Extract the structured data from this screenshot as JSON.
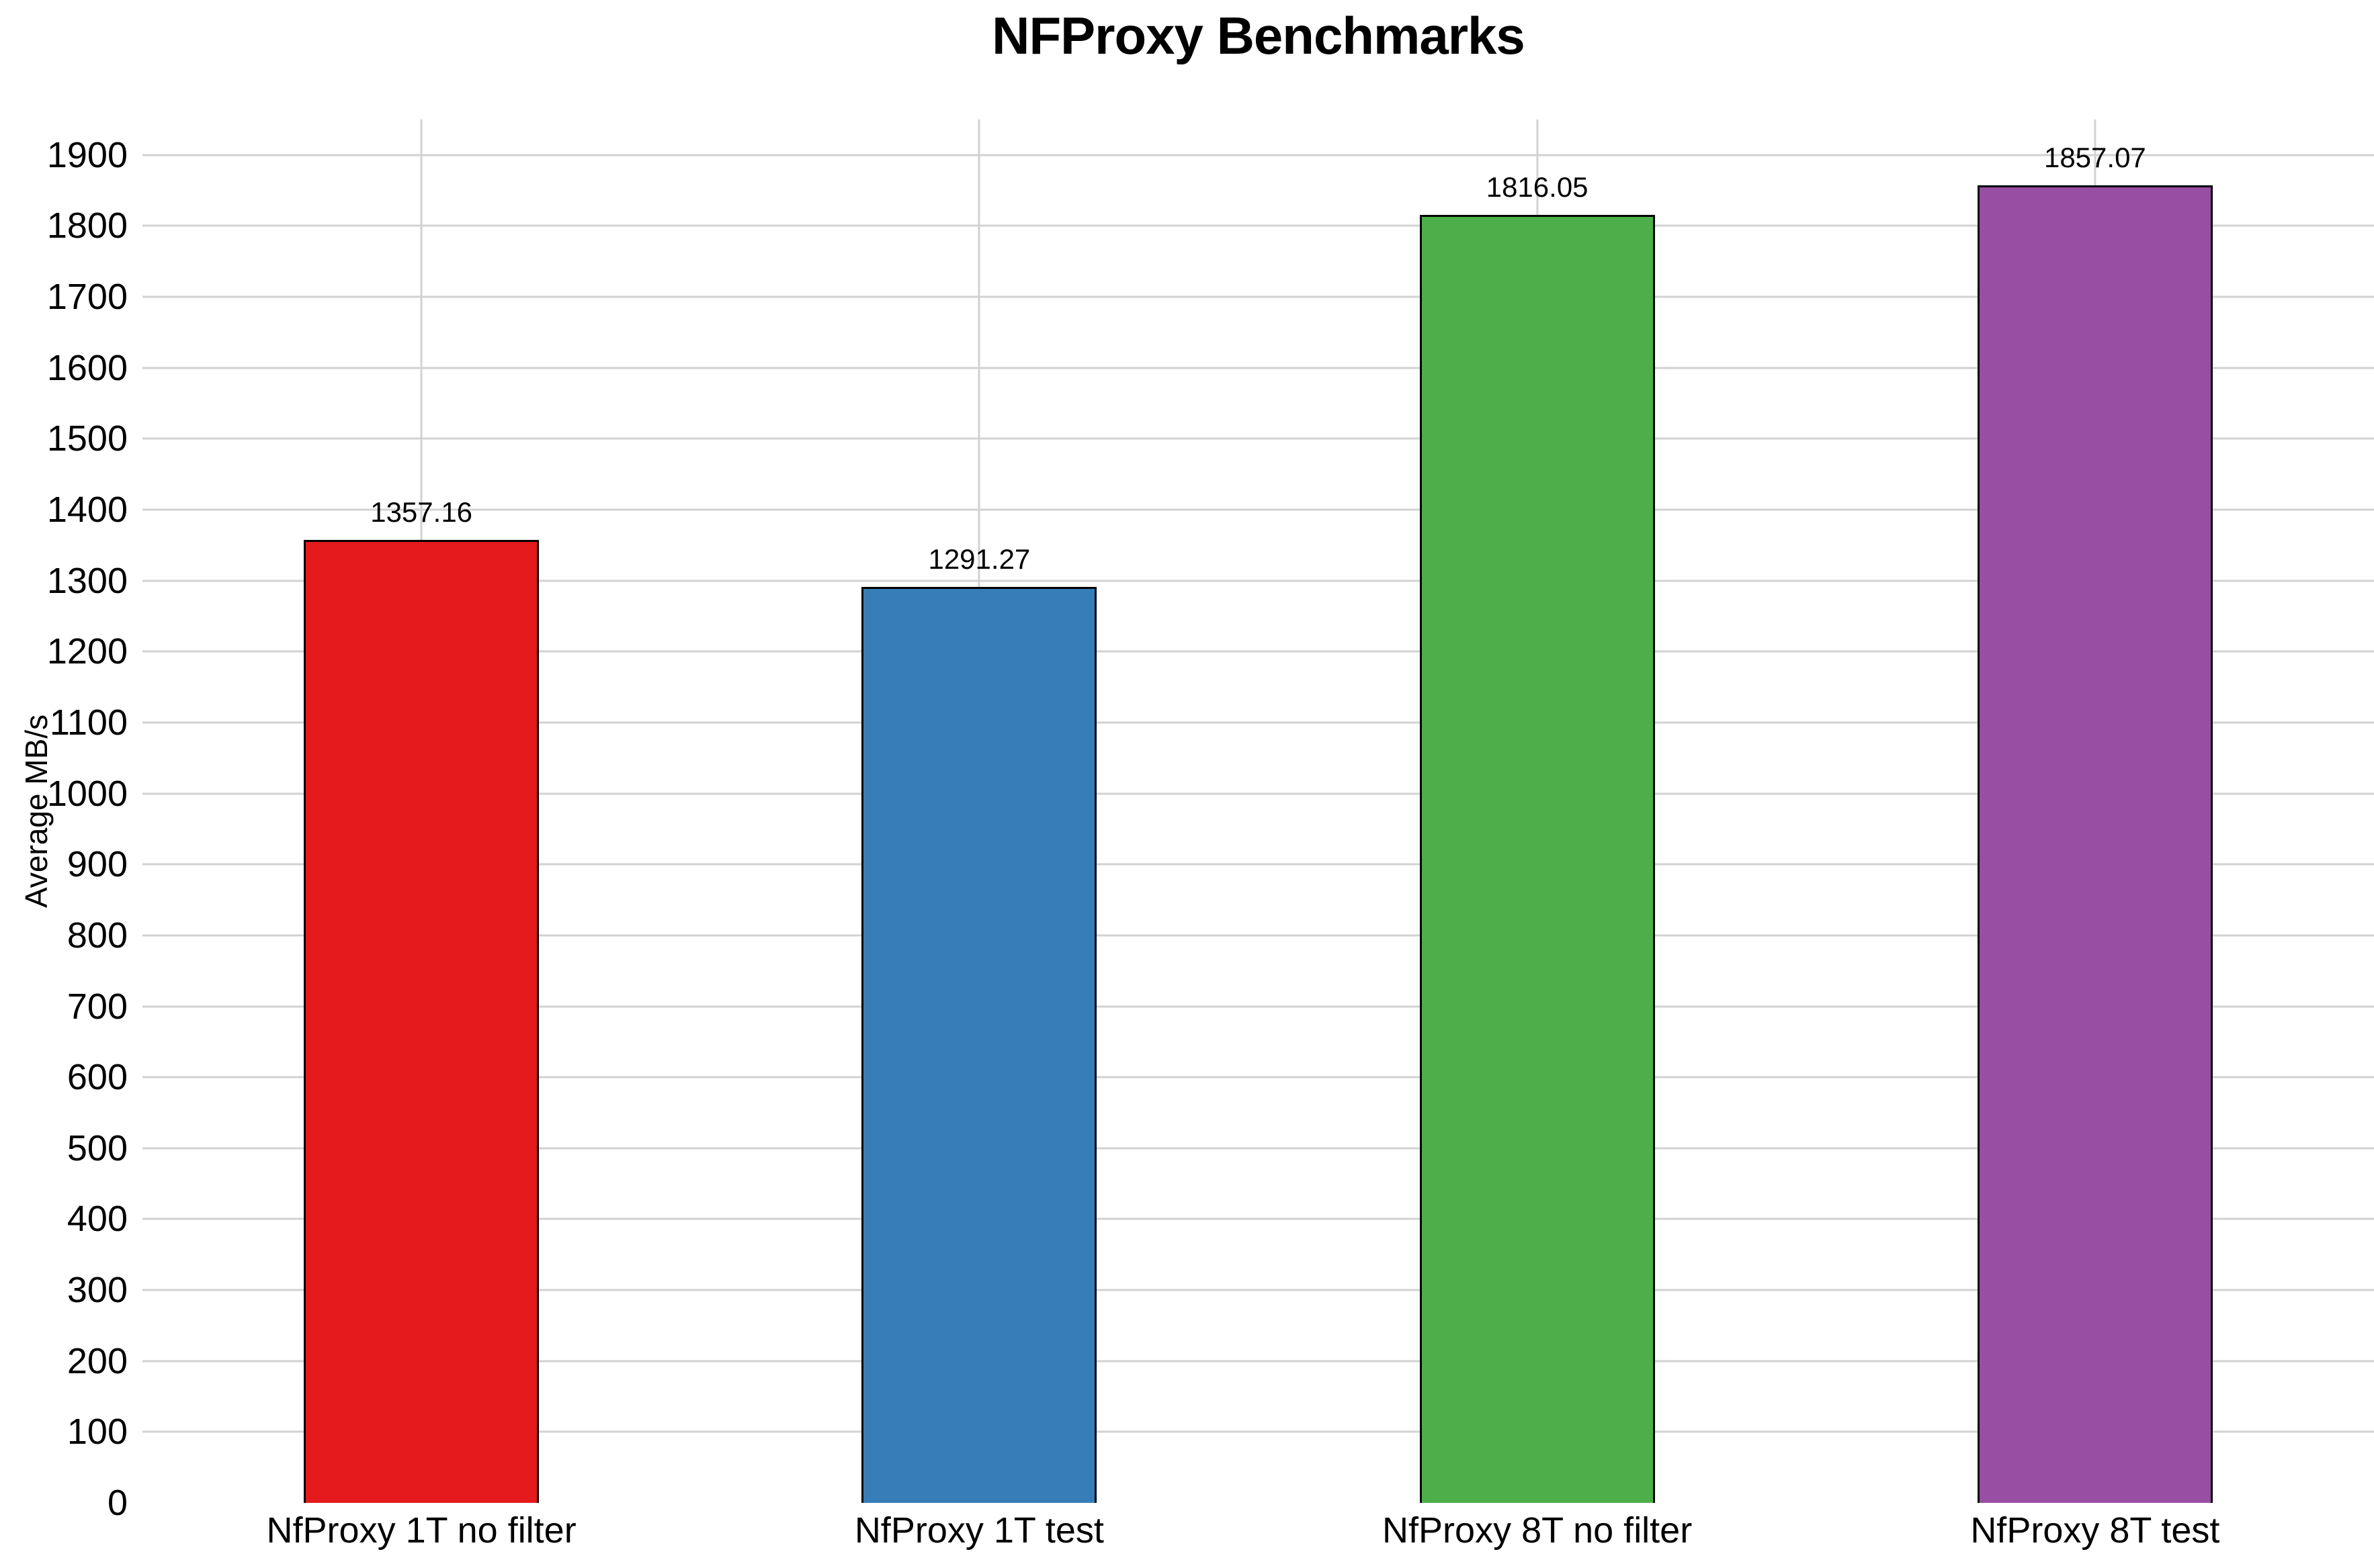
{
  "chart_data": {
    "type": "bar",
    "title": "NFProxy Benchmarks",
    "ylabel": "Average MB/s",
    "xlabel": "",
    "categories": [
      "NfProxy 1T no filter",
      "NfProxy 1T test",
      "NfProxy 8T no filter",
      "NfProxy 8T test"
    ],
    "values": [
      1357.16,
      1291.27,
      1816.05,
      1857.07
    ],
    "value_labels": [
      "1357.16",
      "1291.27",
      "1816.05",
      "1857.07"
    ],
    "bar_colors": [
      "#e41a1c",
      "#377eb8",
      "#4daf4a",
      "#984ea3"
    ],
    "bar_border_color": "#000000",
    "text_color": "#000000",
    "gridline_color": "#d2d2d2",
    "background_color": "#ffffff",
    "ylim": [
      0,
      1950
    ],
    "yticks": [
      0,
      100,
      200,
      300,
      400,
      500,
      600,
      700,
      800,
      900,
      1000,
      1100,
      1200,
      1300,
      1400,
      1500,
      1600,
      1700,
      1800,
      1900
    ],
    "grid": true,
    "legend_position": "none"
  }
}
